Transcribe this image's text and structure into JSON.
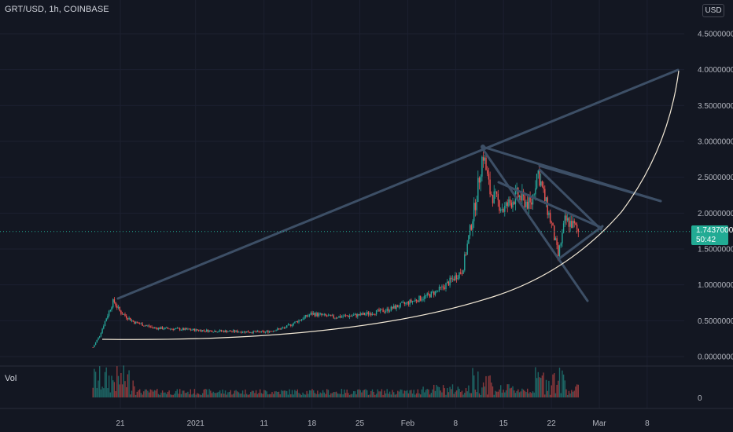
{
  "symbol": "GRT/USD, 1h, COINBASE",
  "currency": "USD",
  "volume_label": "Vol",
  "volume_axis_value": "0",
  "last_price": "1.74370000",
  "countdown": "50:42",
  "colors": {
    "background": "#131722",
    "up": "#26a69a",
    "down": "#ef5350",
    "trendline": "#3d4f66",
    "curve": "#f3e9d6",
    "price_line": "#22ab94",
    "grid": "#1c2030"
  },
  "chart_data": {
    "type": "candlestick",
    "title": "",
    "y_ticks": [
      "4.50000000",
      "4.00000000",
      "3.50000000",
      "3.00000000",
      "2.50000000",
      "2.00000000",
      "1.50000000",
      "1.00000000",
      "0.50000000",
      "0.00000000"
    ],
    "x_ticks": [
      "21",
      "2021",
      "11",
      "18",
      "25",
      "Feb",
      "8",
      "15",
      "22",
      "Mar",
      "8"
    ],
    "ylim": [
      0,
      4.75
    ],
    "price_path": [
      {
        "x": "Dec 17",
        "y": 0.13
      },
      {
        "x": "Dec 18",
        "y": 0.3
      },
      {
        "x": "Dec 19",
        "y": 0.55
      },
      {
        "x": "Dec 20",
        "y": 0.78
      },
      {
        "x": "Dec 21",
        "y": 0.62
      },
      {
        "x": "Dec 23",
        "y": 0.48
      },
      {
        "x": "Dec 26",
        "y": 0.4
      },
      {
        "x": "Dec 30",
        "y": 0.38
      },
      {
        "x": "Jan 3",
        "y": 0.36
      },
      {
        "x": "Jan 7",
        "y": 0.35
      },
      {
        "x": "Jan 11",
        "y": 0.34
      },
      {
        "x": "Jan 14",
        "y": 0.4
      },
      {
        "x": "Jan 18",
        "y": 0.6
      },
      {
        "x": "Jan 21",
        "y": 0.55
      },
      {
        "x": "Jan 25",
        "y": 0.58
      },
      {
        "x": "Jan 29",
        "y": 0.65
      },
      {
        "x": "Feb 1",
        "y": 0.75
      },
      {
        "x": "Feb 4",
        "y": 0.85
      },
      {
        "x": "Feb 6",
        "y": 0.95
      },
      {
        "x": "Feb 9",
        "y": 1.2
      },
      {
        "x": "Feb 11",
        "y": 2.2
      },
      {
        "x": "Feb 12",
        "y": 2.85
      },
      {
        "x": "Feb 13",
        "y": 2.3
      },
      {
        "x": "Feb 15",
        "y": 2.05
      },
      {
        "x": "Feb 17",
        "y": 2.25
      },
      {
        "x": "Feb 19",
        "y": 2.1
      },
      {
        "x": "Feb 20",
        "y": 2.6
      },
      {
        "x": "Feb 21",
        "y": 2.2
      },
      {
        "x": "Feb 22",
        "y": 1.85
      },
      {
        "x": "Feb 23",
        "y": 1.4
      },
      {
        "x": "Feb 24",
        "y": 1.9
      },
      {
        "x": "Feb 25",
        "y": 1.85
      },
      {
        "x": "Feb 26",
        "y": 1.74
      }
    ],
    "price_line": 1.7437
  }
}
